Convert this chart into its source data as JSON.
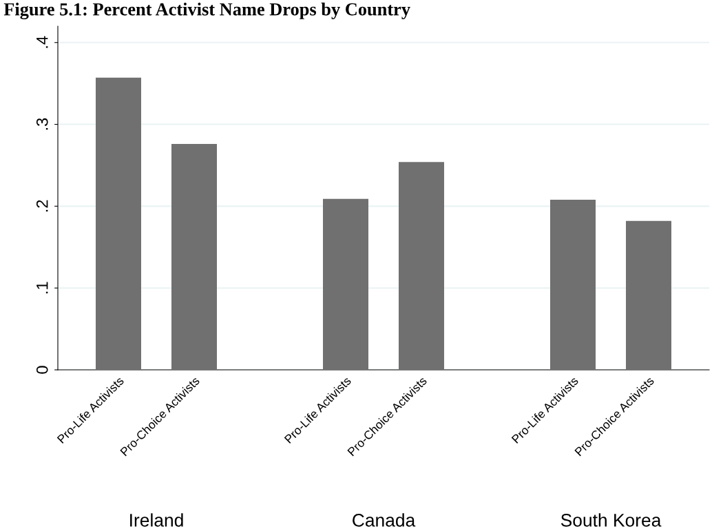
{
  "chart_data": {
    "type": "bar",
    "title": "Figure 5.1: Percent Activist Name Drops by Country",
    "categories": [
      "Pro-Life Activists",
      "Pro-Choice Activists",
      "Pro-Life Activists",
      "Pro-Choice Activists",
      "Pro-Life Activists",
      "Pro-Choice Activists"
    ],
    "values": [
      0.357,
      0.276,
      0.209,
      0.254,
      0.208,
      0.182
    ],
    "color": "#707070",
    "ylim": [
      0,
      0.42
    ],
    "yticks": [
      {
        "value": 0,
        "label": "0"
      },
      {
        "value": 0.1,
        "label": ".1"
      },
      {
        "value": 0.2,
        "label": ".2"
      },
      {
        "value": 0.3,
        "label": ".3"
      },
      {
        "value": 0.4,
        "label": ".4"
      }
    ],
    "grid": "y",
    "annotations": [
      "Ireland",
      "Canada",
      "South Korea"
    ]
  }
}
